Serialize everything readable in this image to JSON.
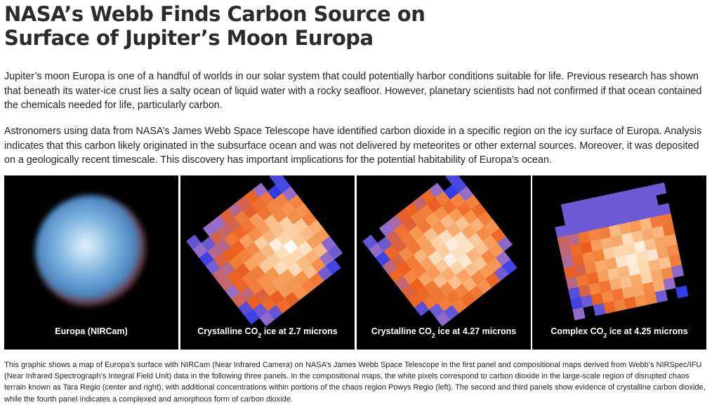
{
  "header": {
    "title": "NASA’s Webb Finds Carbon Source on Surface of Jupiter’s Moon Europa"
  },
  "paragraphs": [
    "Jupiter’s moon Europa is one of a handful of worlds in our solar system that could potentially harbor conditions suitable for life. Previous research has shown that beneath its water-ice crust lies a salty ocean of liquid water with a rocky seafloor. However, planetary scientists had not confirmed if that ocean contained the chemicals needed for life, particularly carbon.",
    "Astronomers using data from NASA’s James Webb Space Telescope have identified carbon dioxide in a specific region on the icy surface of Europa. Analysis indicates that this carbon likely originated in the subsurface ocean and was not delivered by meteorites or other external sources. Moreover, it was deposited on a geologically recent timescale. This discovery has important implications for the potential habitability of Europa’s ocean."
  ],
  "figure": {
    "panels": [
      {
        "label_parts": [
          "Europa (NIRCam)"
        ]
      },
      {
        "label_parts": [
          "Crystalline CO",
          "2",
          " ice at 2.7 microns"
        ]
      },
      {
        "label_parts": [
          "Crystalline CO",
          "2",
          " ice at 4.27 microns"
        ]
      },
      {
        "label_parts": [
          "Complex CO",
          "2",
          " ice at 4.25 microns"
        ]
      }
    ],
    "caption": "This graphic shows a map of Europa’s surface with NIRCam (Near Infrared Camera) on NASA’s James Webb Space Telescope in the first panel and compositional maps derived from Webb’s NIRSpec/IFU (Near Infrared Spectrograph’s Integral Field Unit) data in the following three panels. In the compositional maps, the white pixels correspond to carbon dioxide in the large-scale region of disrupted chaos terrain known as Tara Regio (center and right), with additional concentrations within portions of the chaos region Powys Regio (left). The second and third panels show evidence of crystalline carbon dioxide, while the fourth panel indicates a complexed and amorphous form of carbon dioxide."
  }
}
